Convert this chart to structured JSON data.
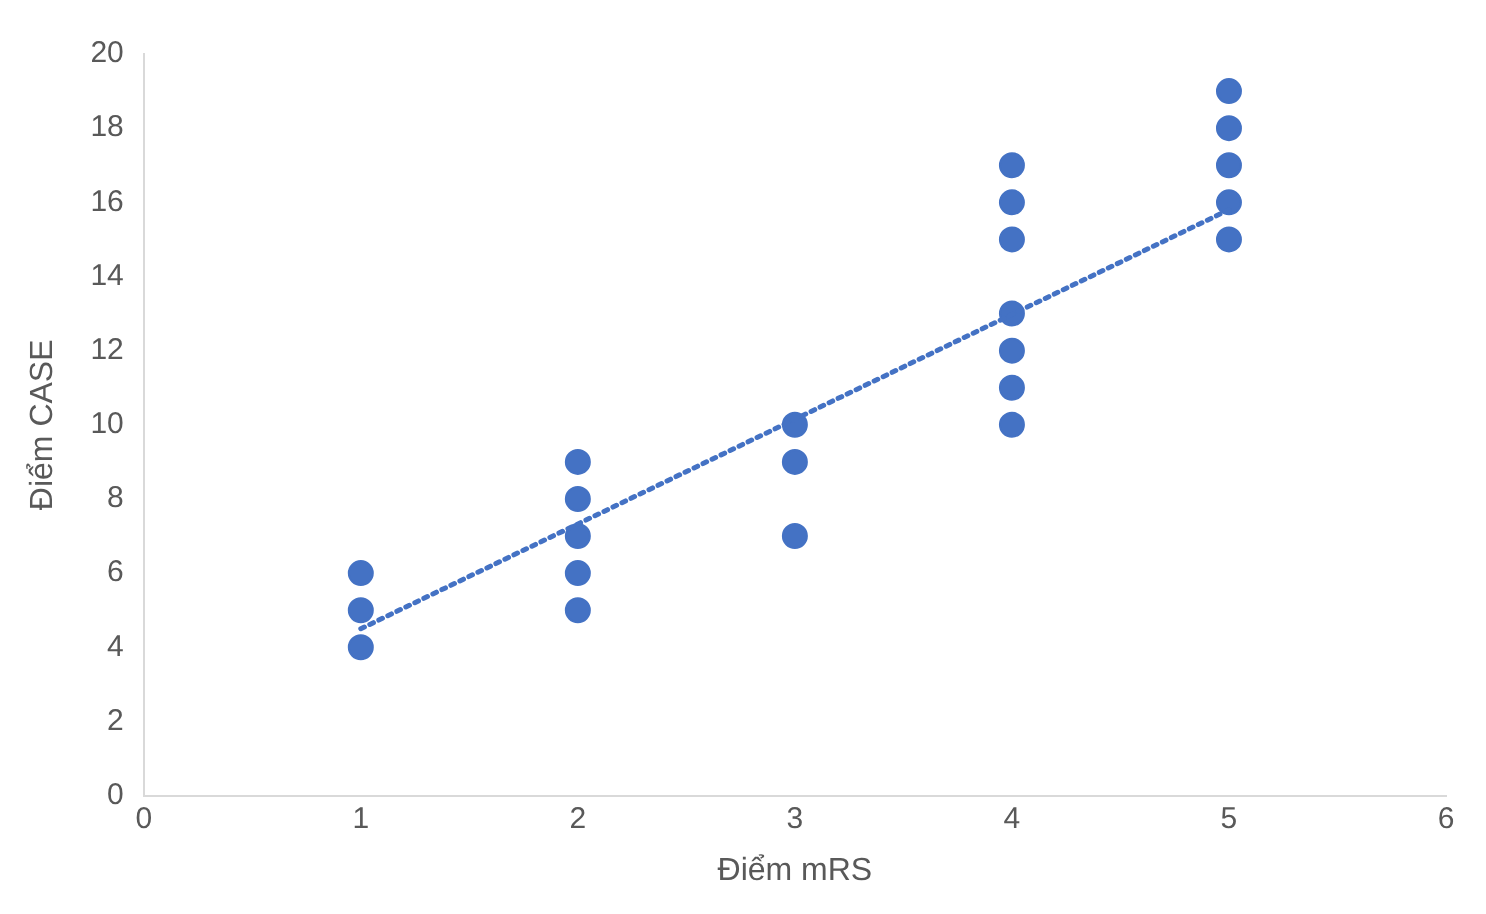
{
  "chart_data": {
    "type": "scatter",
    "xlabel": "Điểm mRS",
    "ylabel": "Điểm CASE",
    "xlim": [
      0,
      6
    ],
    "xticks": [
      0,
      1,
      2,
      3,
      4,
      5,
      6
    ],
    "ylim": [
      0,
      20
    ],
    "yticks": [
      0,
      2,
      4,
      6,
      8,
      10,
      12,
      14,
      16,
      18,
      20
    ],
    "grid": false,
    "legend": false,
    "marker": "circle",
    "series": [
      {
        "color": "#4472c4",
        "x": [
          1,
          1,
          1,
          2,
          2,
          2,
          2,
          2,
          3,
          3,
          3,
          4,
          4,
          4,
          4,
          4,
          4,
          4,
          5,
          5,
          5,
          5,
          5
        ],
        "values": [
          4,
          5,
          6,
          5,
          6,
          7,
          8,
          9,
          7,
          9,
          10,
          10,
          11,
          12,
          13,
          15,
          16,
          17,
          15,
          16,
          17,
          18,
          19
        ]
      },
      {
        "type": "line",
        "color": "#4472c4",
        "line_style": "dotted",
        "marker": "none",
        "x": [
          1,
          5
        ],
        "values": [
          4.5,
          15.8
        ]
      }
    ]
  }
}
